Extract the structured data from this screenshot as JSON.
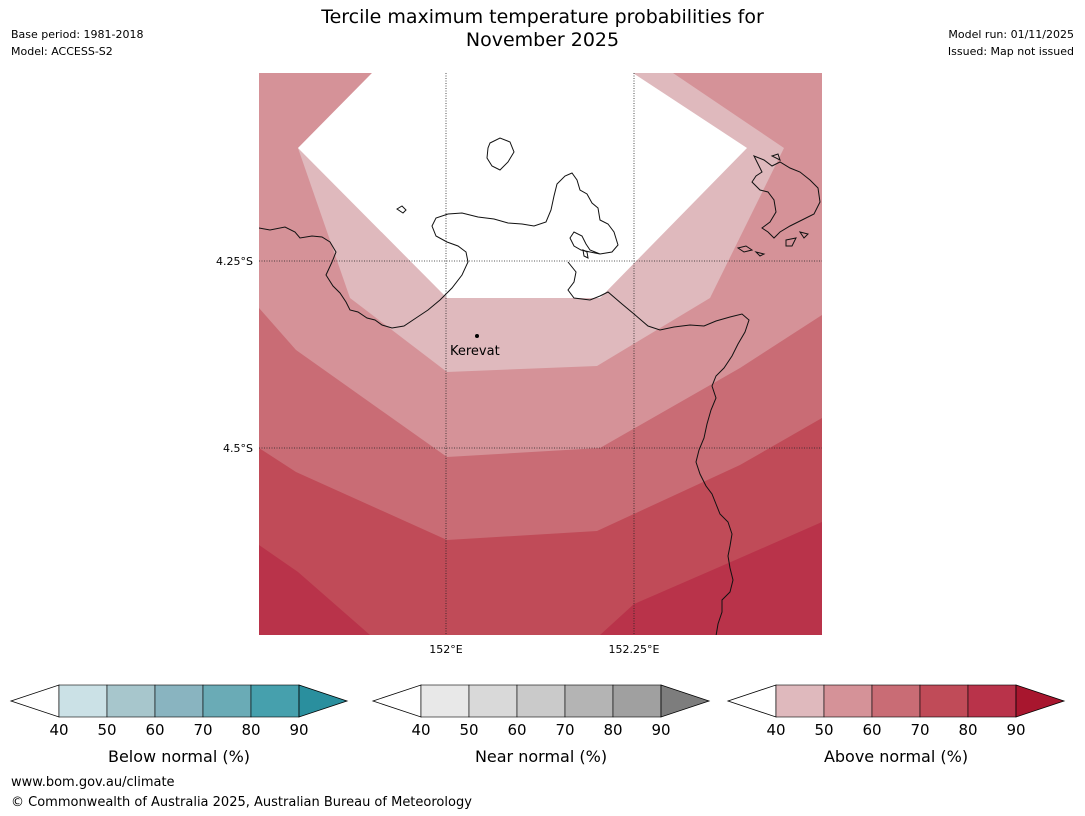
{
  "title": {
    "line1": "Tercile maximum temperature probabilities for",
    "line2": "November 2025"
  },
  "meta": {
    "base_period": "Base period: 1981-2018",
    "model": "Model: ACCESS-S2",
    "model_run": "Model run: 01/11/2025",
    "issued": "Issued: Map not issued"
  },
  "map": {
    "lat_labels": [
      "4.25°S",
      "4.5°S"
    ],
    "lon_labels": [
      "152°E",
      "152.25°E"
    ],
    "place": "Kerevat",
    "band_colors": [
      "#dfb9bd",
      "#d59298",
      "#c96c75",
      "#c04b58",
      "#b9334a"
    ]
  },
  "colorbars": [
    {
      "label": "Below normal (%)",
      "ticks": [
        "40",
        "50",
        "60",
        "70",
        "80",
        "90"
      ],
      "colors": [
        "#cbe1e6",
        "#a7c6cc",
        "#89b4c0",
        "#6aabb6",
        "#46a0ad"
      ],
      "extend_color": "#2a8f9e"
    },
    {
      "label": "Near normal (%)",
      "ticks": [
        "40",
        "50",
        "60",
        "70",
        "80",
        "90"
      ],
      "colors": [
        "#e8e8e8",
        "#d9d9d9",
        "#cacaca",
        "#b4b4b4",
        "#a0a0a0"
      ],
      "extend_color": "#7d7d7d"
    },
    {
      "label": "Above normal (%)",
      "ticks": [
        "40",
        "50",
        "60",
        "70",
        "80",
        "90"
      ],
      "colors": [
        "#dfb9bd",
        "#d59298",
        "#c96c75",
        "#c04b58",
        "#b9334a"
      ],
      "extend_color": "#a8162e"
    }
  ],
  "footer": {
    "url": "www.bom.gov.au/climate",
    "copyright": "© Commonwealth of Australia 2025, Australian Bureau of Meteorology"
  }
}
